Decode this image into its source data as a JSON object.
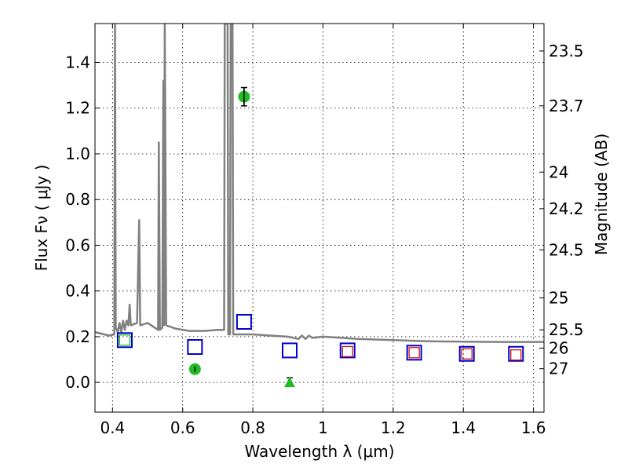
{
  "chart_data": {
    "type": "scatter",
    "title": "",
    "xlabel": "Wavelength  λ (μm)",
    "ylabel": "Flux  Fν  ( μJy )",
    "y2label": "Magnitude (AB)",
    "xlim": [
      0.35,
      1.63
    ],
    "ylim": [
      -0.13,
      1.57
    ],
    "grid": true,
    "x_ticks": [
      0.4,
      0.6,
      0.8,
      1.0,
      1.2,
      1.4,
      1.6
    ],
    "x_tick_labels": [
      "0.4",
      "0.6",
      "0.8",
      "1",
      "1.2",
      "1.4",
      "1.6"
    ],
    "y_ticks": [
      0.0,
      0.2,
      0.4,
      0.6,
      0.8,
      1.0,
      1.2,
      1.4
    ],
    "y_tick_labels": [
      "0.0",
      "0.2",
      "0.4",
      "0.6",
      "0.8",
      "1.0",
      "1.2",
      "1.4"
    ],
    "y2_ticks": [
      {
        "label": "23.5",
        "flux": 1.45
      },
      {
        "label": "23.7",
        "flux": 1.21
      },
      {
        "label": "24",
        "flux": 0.92
      },
      {
        "label": "24.2",
        "flux": 0.76
      },
      {
        "label": "24.5",
        "flux": 0.58
      },
      {
        "label": "25",
        "flux": 0.37
      },
      {
        "label": "25.5",
        "flux": 0.23
      },
      {
        "label": "26",
        "flux": 0.15
      },
      {
        "label": "27",
        "flux": 0.06
      }
    ],
    "series": [
      {
        "marker": "open-square",
        "color": "#0000cc",
        "points": [
          {
            "x": 0.435,
            "y": 0.185
          },
          {
            "x": 0.635,
            "y": 0.155
          },
          {
            "x": 0.775,
            "y": 0.265
          },
          {
            "x": 0.905,
            "y": 0.14
          },
          {
            "x": 1.07,
            "y": 0.14
          },
          {
            "x": 1.26,
            "y": 0.13
          },
          {
            "x": 1.41,
            "y": 0.125
          },
          {
            "x": 1.55,
            "y": 0.125
          }
        ]
      },
      {
        "marker": "open-square-small",
        "color": "#cc0000",
        "points": [
          {
            "x": 1.07,
            "y": 0.135
          },
          {
            "x": 1.26,
            "y": 0.13
          },
          {
            "x": 1.41,
            "y": 0.125
          },
          {
            "x": 1.55,
            "y": 0.12
          }
        ]
      },
      {
        "marker": "open-square-small",
        "color": "#00bb00",
        "points": [
          {
            "x": 0.435,
            "y": 0.185
          }
        ]
      },
      {
        "marker": "circle",
        "color": "#22bb22",
        "points": [
          {
            "x": 0.635,
            "y": 0.058,
            "err": 0.012
          },
          {
            "x": 0.775,
            "y": 1.25,
            "err": 0.04
          }
        ]
      },
      {
        "marker": "triangle",
        "color": "#22bb22",
        "points": [
          {
            "x": 0.905,
            "y": 0.0,
            "err": 0.02
          }
        ]
      },
      {
        "marker": "line",
        "color": "#808080",
        "points": [
          {
            "x": 0.35,
            "y": 0.22
          },
          {
            "x": 0.39,
            "y": 0.205
          },
          {
            "x": 0.405,
            "y": 0.21
          },
          {
            "x": 0.407,
            "y": 1.57
          },
          {
            "x": 0.409,
            "y": 0.24
          },
          {
            "x": 0.415,
            "y": 0.22
          },
          {
            "x": 0.42,
            "y": 0.26
          },
          {
            "x": 0.425,
            "y": 0.22
          },
          {
            "x": 0.43,
            "y": 0.27
          },
          {
            "x": 0.435,
            "y": 0.23
          },
          {
            "x": 0.44,
            "y": 0.27
          },
          {
            "x": 0.445,
            "y": 0.25
          },
          {
            "x": 0.449,
            "y": 0.34
          },
          {
            "x": 0.452,
            "y": 0.25
          },
          {
            "x": 0.47,
            "y": 0.26
          },
          {
            "x": 0.476,
            "y": 0.71
          },
          {
            "x": 0.479,
            "y": 0.25
          },
          {
            "x": 0.5,
            "y": 0.26
          },
          {
            "x": 0.53,
            "y": 0.23
          },
          {
            "x": 0.532,
            "y": 1.05
          },
          {
            "x": 0.535,
            "y": 0.23
          },
          {
            "x": 0.542,
            "y": 0.24
          },
          {
            "x": 0.545,
            "y": 1.32
          },
          {
            "x": 0.547,
            "y": 0.25
          },
          {
            "x": 0.549,
            "y": 1.57
          },
          {
            "x": 0.553,
            "y": 0.25
          },
          {
            "x": 0.58,
            "y": 0.235
          },
          {
            "x": 0.62,
            "y": 0.225
          },
          {
            "x": 0.66,
            "y": 0.225
          },
          {
            "x": 0.7,
            "y": 0.23
          },
          {
            "x": 0.718,
            "y": 0.23
          },
          {
            "x": 0.72,
            "y": 1.57
          },
          {
            "x": 0.728,
            "y": 1.57
          },
          {
            "x": 0.73,
            "y": 0.21
          },
          {
            "x": 0.735,
            "y": 0.21
          },
          {
            "x": 0.737,
            "y": 1.57
          },
          {
            "x": 0.742,
            "y": 1.57
          },
          {
            "x": 0.744,
            "y": 0.21
          },
          {
            "x": 0.8,
            "y": 0.21
          },
          {
            "x": 0.85,
            "y": 0.205
          },
          {
            "x": 0.9,
            "y": 0.2
          },
          {
            "x": 0.93,
            "y": 0.19
          },
          {
            "x": 0.94,
            "y": 0.205
          },
          {
            "x": 0.95,
            "y": 0.19
          },
          {
            "x": 0.96,
            "y": 0.205
          },
          {
            "x": 0.97,
            "y": 0.195
          },
          {
            "x": 1.0,
            "y": 0.2
          },
          {
            "x": 1.1,
            "y": 0.19
          },
          {
            "x": 1.2,
            "y": 0.185
          },
          {
            "x": 1.3,
            "y": 0.18
          },
          {
            "x": 1.4,
            "y": 0.178
          },
          {
            "x": 1.5,
            "y": 0.177
          },
          {
            "x": 1.63,
            "y": 0.177
          }
        ]
      }
    ]
  }
}
